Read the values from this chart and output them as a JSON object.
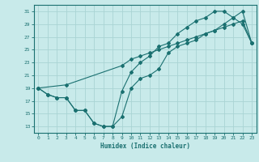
{
  "title": "",
  "xlabel": "Humidex (Indice chaleur)",
  "ylabel": "",
  "bg_color": "#c8eaea",
  "grid_color": "#aad4d4",
  "line_color": "#1a7070",
  "xlim": [
    -0.5,
    23.5
  ],
  "ylim": [
    12,
    32
  ],
  "xticks": [
    0,
    1,
    2,
    3,
    4,
    5,
    6,
    7,
    8,
    9,
    10,
    11,
    12,
    13,
    14,
    15,
    16,
    17,
    18,
    19,
    20,
    21,
    22,
    23
  ],
  "yticks": [
    13,
    15,
    17,
    19,
    21,
    23,
    25,
    27,
    29,
    31
  ],
  "line1_x": [
    0,
    1,
    2,
    3,
    4,
    5,
    6,
    7,
    8,
    9,
    10,
    11,
    12,
    13,
    14,
    15,
    16,
    17,
    18,
    19,
    20,
    21,
    22,
    23
  ],
  "line1_y": [
    19,
    18,
    17.5,
    17.5,
    15.5,
    15.5,
    13.5,
    13,
    13,
    14.5,
    19,
    20.5,
    21,
    22,
    24.5,
    25.5,
    26,
    26.5,
    27.5,
    28,
    29,
    30,
    31,
    26
  ],
  "line2_x": [
    0,
    1,
    2,
    3,
    4,
    5,
    6,
    7,
    8,
    9,
    10,
    11,
    12,
    13,
    14,
    15,
    16,
    17,
    18,
    19,
    20,
    21,
    22,
    23
  ],
  "line2_y": [
    19,
    18,
    17.5,
    17.5,
    15.5,
    15.5,
    13.5,
    13,
    13,
    18.5,
    21.5,
    23,
    24,
    25.5,
    26,
    27.5,
    28.5,
    29.5,
    30,
    31,
    31,
    30,
    29,
    26
  ],
  "line3_x": [
    0,
    3,
    9,
    10,
    11,
    12,
    13,
    14,
    15,
    16,
    17,
    18,
    19,
    20,
    21,
    22,
    23
  ],
  "line3_y": [
    19,
    19.5,
    22.5,
    23.5,
    24,
    24.5,
    25,
    25.5,
    26,
    26.5,
    27,
    27.5,
    28,
    28.5,
    29,
    29.5,
    26
  ]
}
